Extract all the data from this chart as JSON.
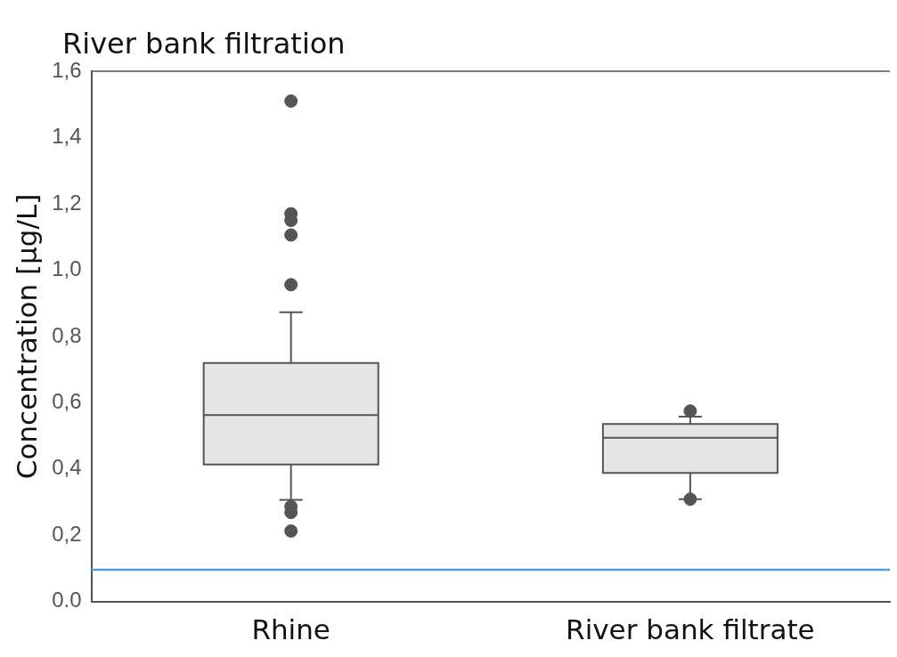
{
  "chart_data": {
    "type": "box",
    "title": "River bank filtration",
    "ylabel": "Concentration [µg/L]",
    "categories": [
      "Rhine",
      "River bank filtrate"
    ],
    "boxes": [
      {
        "low": 0.307,
        "q1": 0.414,
        "median": 0.563,
        "q3": 0.72,
        "high": 0.873,
        "outliers": [
          1.51,
          1.17,
          1.15,
          1.106,
          0.956,
          0.287,
          0.269,
          0.213
        ]
      },
      {
        "low": 0.309,
        "q1": 0.388,
        "median": 0.494,
        "q3": 0.536,
        "high": 0.558,
        "outliers": [
          0.575,
          0.309
        ]
      }
    ],
    "color": "#e6e6e6",
    "ylim": [
      0,
      1.6
    ],
    "yticks": [
      {
        "value": 0,
        "label": "0.0"
      },
      {
        "value": 0.2,
        "label": "0,2"
      },
      {
        "value": 0.4,
        "label": "0,4"
      },
      {
        "value": 0.6,
        "label": "0,6"
      },
      {
        "value": 0.8,
        "label": "0,8"
      },
      {
        "value": 1,
        "label": "1,0"
      },
      {
        "value": 1.2,
        "label": "1,2"
      },
      {
        "value": 1.4,
        "label": "1,4"
      },
      {
        "value": 1.6,
        "label": "1,6"
      }
    ],
    "ref_lines": [
      {
        "axis": "y",
        "value": 0.096,
        "color": "#5b9bd5"
      }
    ],
    "grid": false,
    "legend": false,
    "marker": "circle"
  }
}
